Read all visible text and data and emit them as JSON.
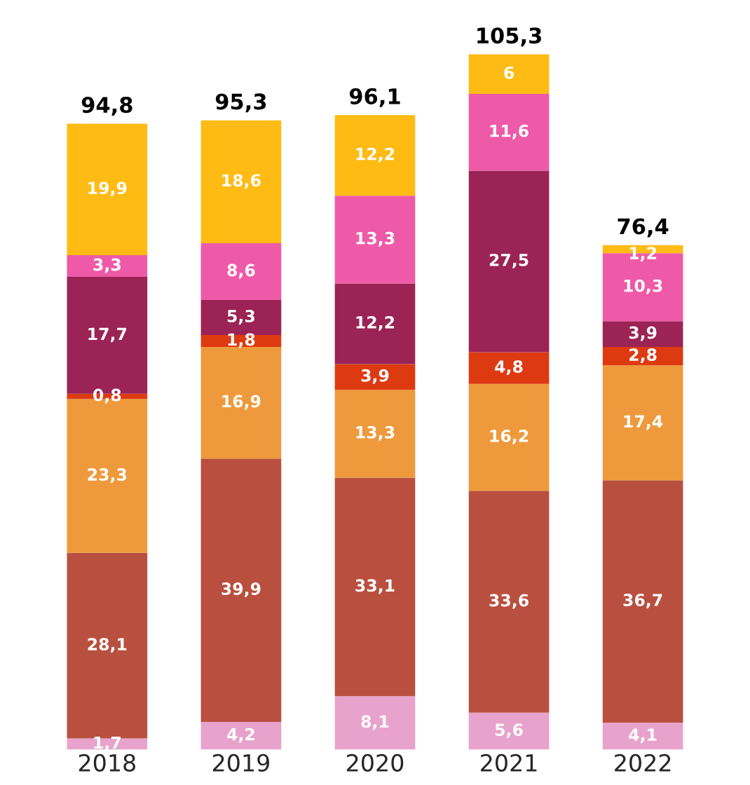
{
  "chart_data": {
    "type": "bar",
    "stacked": true,
    "categories": [
      "2018",
      "2019",
      "2020",
      "2021",
      "2022"
    ],
    "series": [
      {
        "color": "#e7a3cc",
        "values": [
          1.7,
          4.2,
          8.1,
          5.6,
          4.1
        ],
        "value_labels": [
          "1,7",
          "4,2",
          "8,1",
          "5,6",
          "4,1"
        ]
      },
      {
        "color": "#b9503f",
        "values": [
          28.1,
          39.9,
          33.1,
          33.6,
          36.7
        ],
        "value_labels": [
          "28,1",
          "39,9",
          "33,1",
          "33,6",
          "36,7"
        ]
      },
      {
        "color": "#ee9a3c",
        "values": [
          23.3,
          16.9,
          13.3,
          16.2,
          17.4
        ],
        "value_labels": [
          "23,3",
          "16,9",
          "13,3",
          "16,2",
          "17,4"
        ]
      },
      {
        "color": "#de3a12",
        "values": [
          0.8,
          1.8,
          3.9,
          4.8,
          2.8
        ],
        "value_labels": [
          "0,8",
          "1,8",
          "3,9",
          "4,8",
          "2,8"
        ]
      },
      {
        "color": "#9b2355",
        "values": [
          17.7,
          5.3,
          12.2,
          27.5,
          3.9
        ],
        "value_labels": [
          "17,7",
          "5,3",
          "12,2",
          "27,5",
          "3,9"
        ]
      },
      {
        "color": "#ef5aa8",
        "values": [
          3.3,
          8.6,
          13.3,
          11.6,
          10.3
        ],
        "value_labels": [
          "3,3",
          "8,6",
          "13,3",
          "11,6",
          "10,3"
        ]
      },
      {
        "color": "#fdbb14",
        "values": [
          19.9,
          18.6,
          12.2,
          6,
          1.2
        ],
        "value_labels": [
          "19,9",
          "18,6",
          "12,2",
          "6",
          "1,2"
        ]
      }
    ],
    "totals": [
      "94,8",
      "95,3",
      "96,1",
      "105,3",
      "76,4"
    ],
    "grid": false,
    "legend": false
  }
}
